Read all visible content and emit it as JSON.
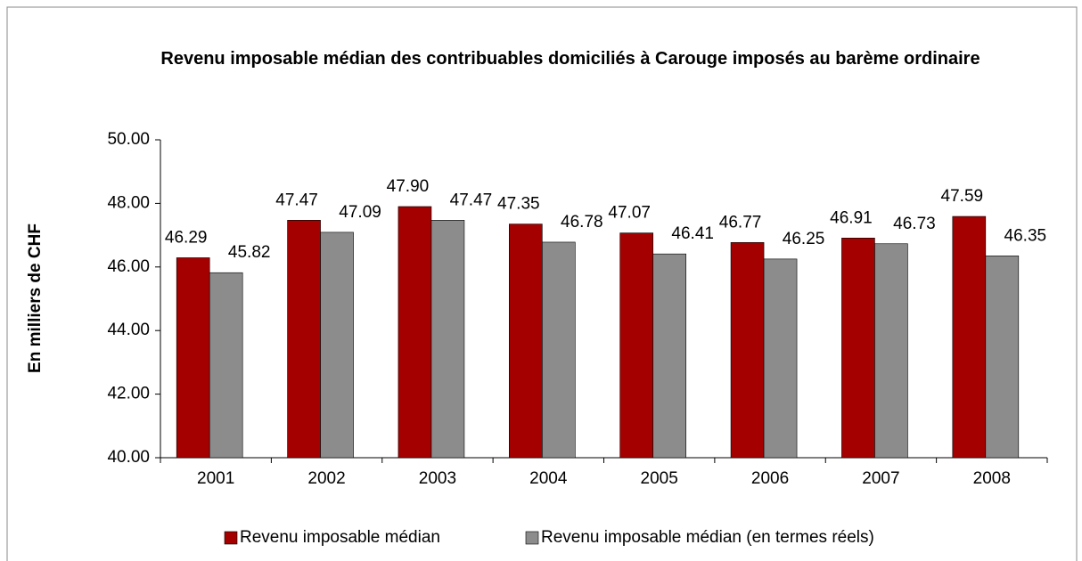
{
  "chart_data": {
    "type": "bar",
    "title": "Revenu imposable médian des contribuables domiciliés à Carouge imposés au barème ordinaire",
    "ylabel": "En milliers de CHF",
    "categories": [
      "2001",
      "2002",
      "2003",
      "2004",
      "2005",
      "2006",
      "2007",
      "2008"
    ],
    "series": [
      {
        "name": "Revenu imposable médian",
        "color": "#a50000",
        "values": [
          46.29,
          47.47,
          47.9,
          47.35,
          47.07,
          46.77,
          46.91,
          47.59
        ],
        "value_labels": [
          "46.29",
          "47.47",
          "47.90",
          "47.35",
          "47.07",
          "46.77",
          "46.91",
          "47.59"
        ]
      },
      {
        "name": "Revenu imposable médian (en termes réels)",
        "color": "#8c8c8c",
        "values": [
          45.82,
          47.09,
          47.47,
          46.78,
          46.41,
          46.25,
          46.73,
          46.35
        ],
        "value_labels": [
          "45.82",
          "47.09",
          "47.47",
          "46.78",
          "46.41",
          "46.25",
          "46.73",
          "46.35"
        ]
      }
    ],
    "ylim": [
      40,
      50
    ],
    "yticks": [
      {
        "value": 40,
        "label": "40.00"
      },
      {
        "value": 42,
        "label": "42.00"
      },
      {
        "value": 44,
        "label": "44.00"
      },
      {
        "value": 46,
        "label": "46.00"
      },
      {
        "value": 48,
        "label": "48.00"
      },
      {
        "value": 50,
        "label": "50.00"
      }
    ],
    "grid": false,
    "legend": "bottom"
  }
}
